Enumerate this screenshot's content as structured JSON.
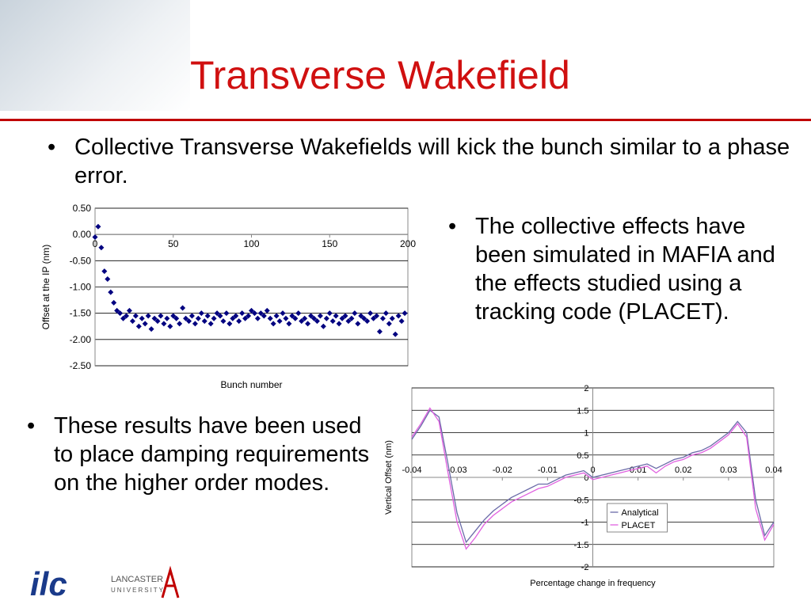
{
  "slide": {
    "title": "Transverse Wakefield",
    "bullets": [
      "Collective Transverse Wakefields will kick the bunch similar to a phase error.",
      "The collective effects have been simulated in MAFIA and the effects studied using a tracking code (PLACET).",
      "These results have been used to place damping requirements on the higher order modes."
    ],
    "logos": {
      "ilc": "ilc",
      "lancaster": "LANCASTER",
      "university": "UNIVERSITY"
    }
  },
  "chart_data": [
    {
      "type": "scatter",
      "x_label": "Bunch number",
      "y_label": "Offset at the IP (nm)",
      "color": "#000080",
      "grid": true,
      "xlim": [
        0,
        200
      ],
      "xticks": [
        0,
        50,
        100,
        150,
        200
      ],
      "ylim": [
        -2.5,
        0.5
      ],
      "yticks": [
        {
          "value": 0.5,
          "label": "0.50"
        },
        {
          "value": 0,
          "label": "0.00"
        },
        {
          "value": -0.5,
          "label": "-0.50"
        },
        {
          "value": -1,
          "label": "-1.00"
        },
        {
          "value": -1.5,
          "label": "-1.50"
        },
        {
          "value": -2,
          "label": "-2.00"
        },
        {
          "value": -2.5,
          "label": "-2.50"
        }
      ],
      "x": [
        0,
        2,
        4,
        6,
        8,
        10,
        12,
        14,
        16,
        18,
        20,
        22,
        24,
        26,
        28,
        30,
        32,
        34,
        36,
        38,
        40,
        42,
        44,
        46,
        48,
        50,
        52,
        54,
        56,
        58,
        60,
        62,
        64,
        66,
        68,
        70,
        72,
        74,
        76,
        78,
        80,
        82,
        84,
        86,
        88,
        90,
        92,
        94,
        96,
        98,
        100,
        102,
        104,
        106,
        108,
        110,
        112,
        114,
        116,
        118,
        120,
        122,
        124,
        126,
        128,
        130,
        132,
        134,
        136,
        138,
        140,
        142,
        144,
        146,
        148,
        150,
        152,
        154,
        156,
        158,
        160,
        162,
        164,
        166,
        168,
        170,
        172,
        174,
        176,
        178,
        180,
        182,
        184,
        186,
        188,
        190,
        192,
        194,
        196,
        198
      ],
      "values": [
        -0.05,
        0.15,
        -0.25,
        -0.7,
        -0.85,
        -1.1,
        -1.3,
        -1.45,
        -1.5,
        -1.6,
        -1.55,
        -1.45,
        -1.65,
        -1.55,
        -1.75,
        -1.6,
        -1.7,
        -1.55,
        -1.8,
        -1.6,
        -1.65,
        -1.55,
        -1.7,
        -1.6,
        -1.75,
        -1.55,
        -1.6,
        -1.7,
        -1.4,
        -1.6,
        -1.65,
        -1.55,
        -1.7,
        -1.6,
        -1.5,
        -1.65,
        -1.55,
        -1.7,
        -1.6,
        -1.5,
        -1.55,
        -1.65,
        -1.5,
        -1.7,
        -1.6,
        -1.55,
        -1.65,
        -1.5,
        -1.6,
        -1.55,
        -1.45,
        -1.5,
        -1.6,
        -1.5,
        -1.55,
        -1.45,
        -1.6,
        -1.7,
        -1.55,
        -1.65,
        -1.5,
        -1.6,
        -1.7,
        -1.55,
        -1.6,
        -1.5,
        -1.65,
        -1.6,
        -1.7,
        -1.55,
        -1.6,
        -1.65,
        -1.55,
        -1.75,
        -1.6,
        -1.5,
        -1.65,
        -1.55,
        -1.7,
        -1.6,
        -1.55,
        -1.65,
        -1.6,
        -1.5,
        -1.7,
        -1.55,
        -1.6,
        -1.65,
        -1.5,
        -1.6,
        -1.55,
        -1.85,
        -1.6,
        -1.5,
        -1.7,
        -1.6,
        -1.9,
        -1.55,
        -1.65,
        -1.5
      ]
    },
    {
      "type": "line",
      "x_label": "Percentage change in frequency",
      "y_label": "Vertical Offset (nm)",
      "grid": true,
      "legend": "center",
      "xlim": [
        -0.04,
        0.04
      ],
      "xticks": [
        -0.04,
        -0.03,
        -0.02,
        -0.01,
        0,
        0.01,
        0.02,
        0.03,
        0.04
      ],
      "ylim": [
        -2,
        2
      ],
      "yticks": [
        2,
        1.5,
        1,
        0.5,
        0,
        -0.5,
        -1,
        -1.5,
        -2
      ],
      "x": [
        -0.04,
        -0.038,
        -0.036,
        -0.034,
        -0.032,
        -0.03,
        -0.028,
        -0.026,
        -0.024,
        -0.022,
        -0.02,
        -0.018,
        -0.016,
        -0.014,
        -0.012,
        -0.01,
        -0.008,
        -0.006,
        -0.004,
        -0.002,
        0,
        0.002,
        0.004,
        0.006,
        0.008,
        0.01,
        0.012,
        0.014,
        0.016,
        0.018,
        0.02,
        0.022,
        0.024,
        0.026,
        0.028,
        0.03,
        0.032,
        0.034,
        0.036,
        0.038,
        0.04
      ],
      "series": [
        {
          "name": "Analytical",
          "color": "#6a6aa8",
          "values": [
            0.85,
            1.15,
            1.5,
            1.35,
            0.3,
            -0.8,
            -1.45,
            -1.2,
            -0.95,
            -0.75,
            -0.6,
            -0.45,
            -0.35,
            -0.25,
            -0.15,
            -0.15,
            -0.05,
            0.05,
            0.1,
            0.15,
            0,
            0.05,
            0.1,
            0.15,
            0.2,
            0.25,
            0.3,
            0.2,
            0.3,
            0.4,
            0.45,
            0.55,
            0.6,
            0.7,
            0.85,
            1.0,
            1.25,
            1.0,
            -0.5,
            -1.3,
            -1.0
          ]
        },
        {
          "name": "PLACET",
          "color": "#e060e0",
          "values": [
            0.9,
            1.2,
            1.55,
            1.25,
            0.1,
            -1.0,
            -1.6,
            -1.35,
            -1.05,
            -0.85,
            -0.7,
            -0.55,
            -0.45,
            -0.35,
            -0.25,
            -0.2,
            -0.1,
            0.0,
            0.05,
            0.1,
            -0.05,
            0.0,
            0.05,
            0.1,
            0.15,
            0.2,
            0.25,
            0.1,
            0.25,
            0.35,
            0.4,
            0.5,
            0.55,
            0.65,
            0.8,
            0.95,
            1.2,
            0.9,
            -0.7,
            -1.4,
            -1.05
          ]
        }
      ]
    }
  ]
}
